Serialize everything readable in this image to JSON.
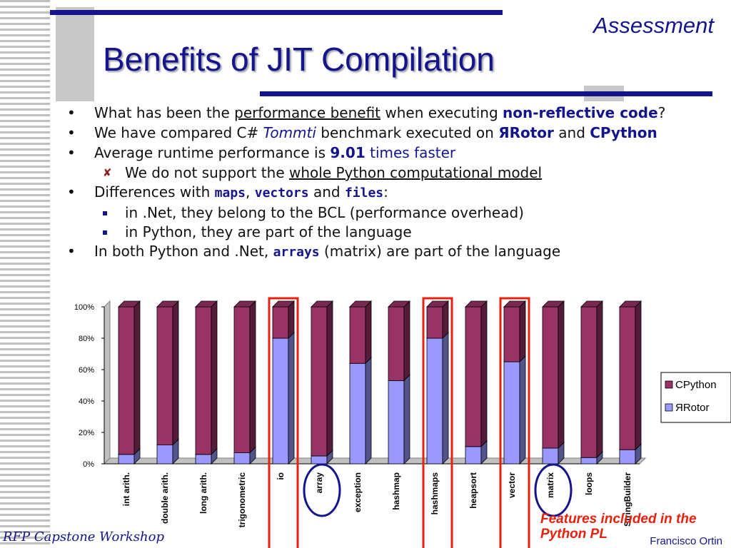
{
  "header": {
    "section": "Assessment",
    "title": "Benefits of JIT Compilation"
  },
  "bullets": {
    "b1": {
      "t1": "What has been the ",
      "link": "performance benefit",
      "t2": " when executing ",
      "bold": "non-reflective code",
      "t3": "?"
    },
    "b2": {
      "t1": "We have compared C# ",
      "ital": "Tommti",
      "t2": " benchmark executed on ",
      "bold1": "ЯRotor",
      "t3": " and ",
      "bold2": "CPython"
    },
    "b3": {
      "t1": "Average runtime performance is ",
      "num": "9.01",
      "t2": " times faster"
    },
    "b3_sub": {
      "t1": "We do not support the ",
      "link": "whole Python computational model"
    },
    "b4": {
      "t1": "Differences with ",
      "c1": "maps",
      "sep1": ", ",
      "c2": "vectors",
      "sep2": " and ",
      "c3": "files",
      "t2": ":"
    },
    "b4_sub1": "in .Net, they belong to the BCL (performance overhead)",
    "b4_sub2": "in Python, they are part of the language",
    "b5": {
      "t1": "In both Python and .Net, ",
      "code": "arrays",
      "t2": " (matrix) are part of the language"
    }
  },
  "chart_data": {
    "type": "bar",
    "stacked": "100%",
    "categories": [
      "int arith.",
      "double arith.",
      "long arith.",
      "trigonometric",
      "io",
      "array",
      "exception",
      "hashmap",
      "hashmaps",
      "heapsort",
      "vector",
      "matrix",
      "loops",
      "StringBuilder"
    ],
    "series": [
      {
        "name": "ЯRotor",
        "values": [
          6,
          12,
          6,
          7,
          80,
          5,
          64,
          53,
          80,
          11,
          65,
          10,
          4,
          9
        ]
      },
      {
        "name": "CPython",
        "values": [
          94,
          88,
          94,
          93,
          20,
          95,
          36,
          47,
          20,
          89,
          35,
          90,
          96,
          91
        ]
      }
    ],
    "y_ticks": [
      "0%",
      "20%",
      "40%",
      "60%",
      "80%",
      "100%"
    ],
    "ylim": [
      0,
      100
    ],
    "legend_position": "right",
    "colors": {
      "ЯRotor": "#9999ff",
      "CPython": "#993366"
    },
    "highlight_boxes": [
      "io",
      "hashmaps",
      "vector"
    ],
    "highlight_circles": [
      "array",
      "matrix"
    ],
    "annotation": "Features included in the Python PL"
  },
  "footer": {
    "left": "RFP Capstone Workshop",
    "right": "Francisco Ortin"
  },
  "colors": {
    "accent": "#14148c",
    "highlight": "#e8200c"
  }
}
